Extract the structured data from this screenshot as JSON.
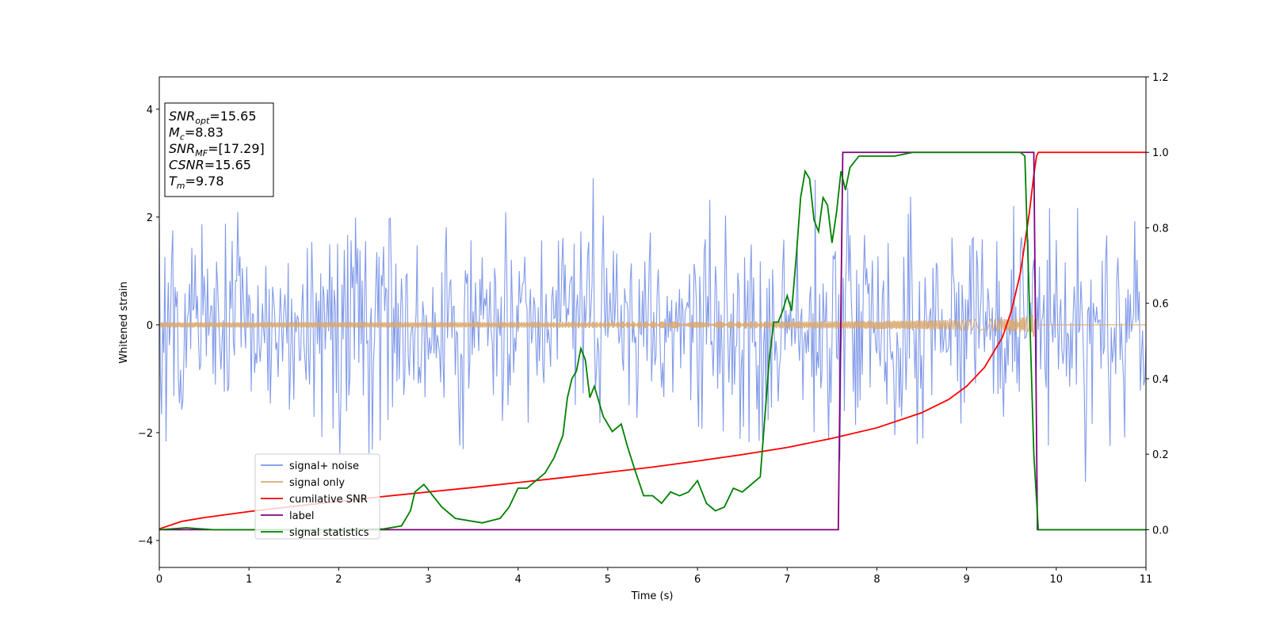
{
  "chart_data": {
    "type": "line",
    "title": "",
    "xlabel": "Time (s)",
    "ylabel": "Whitened strain",
    "y2label": "",
    "xlim": [
      0,
      11
    ],
    "ylim": [
      -4.5,
      4.6
    ],
    "y2lim": [
      -0.1,
      1.2
    ],
    "xticks": [
      0,
      1,
      2,
      3,
      4,
      5,
      6,
      7,
      8,
      9,
      10,
      11
    ],
    "yticks": [
      -4,
      -2,
      0,
      2,
      4
    ],
    "y2ticks": [
      0.0,
      0.2,
      0.4,
      0.6,
      0.8,
      1.0,
      1.2
    ],
    "grid": false,
    "legend_position": "lower-left",
    "info_box": {
      "lines": [
        {
          "main": "SNR",
          "sub": "opt",
          "rest": "=15.65"
        },
        {
          "main": "M",
          "sub": "c",
          "rest": "=8.83"
        },
        {
          "main": "SNR",
          "sub": "MF",
          "rest": "=[17.29]"
        },
        {
          "main": "CSNR",
          "sub": "",
          "rest": "=15.65"
        },
        {
          "main": "T",
          "sub": "m",
          "rest": "=9.78"
        }
      ]
    },
    "series": [
      {
        "name": "signal+ noise",
        "axis": "left",
        "color": "#7b96e8",
        "kind": "noise",
        "sigma": 0.95,
        "sample_step": 0.0125,
        "t_end": 11
      },
      {
        "name": "signal only",
        "axis": "left",
        "color": "#d9a86e",
        "kind": "chirp",
        "t_start": 0,
        "t_merge": 9.78,
        "amp_start": 0.05,
        "amp_merge": 1.05
      },
      {
        "name": "cumilative SNR",
        "axis": "right",
        "color": "#ff0000",
        "x": [
          0,
          0.25,
          0.5,
          1,
          1.5,
          2,
          2.5,
          3,
          3.5,
          4,
          4.5,
          5,
          5.5,
          6,
          6.5,
          7,
          7.5,
          8,
          8.5,
          8.8,
          9,
          9.2,
          9.4,
          9.5,
          9.6,
          9.65,
          9.7,
          9.75,
          9.78,
          9.8,
          10,
          10.5,
          11
        ],
        "y": [
          0.002,
          0.022,
          0.032,
          0.048,
          0.062,
          0.075,
          0.088,
          0.1,
          0.112,
          0.125,
          0.138,
          0.152,
          0.166,
          0.182,
          0.199,
          0.218,
          0.242,
          0.27,
          0.31,
          0.345,
          0.38,
          0.43,
          0.51,
          0.58,
          0.68,
          0.76,
          0.84,
          0.94,
          0.99,
          1.0,
          1.0,
          1.0,
          1.0
        ]
      },
      {
        "name": "label",
        "axis": "right",
        "color": "#800080",
        "x": [
          0,
          7.57,
          7.62,
          9.75,
          9.79,
          11
        ],
        "y": [
          0,
          0,
          1,
          1,
          0,
          0
        ]
      },
      {
        "name": "signal statistics",
        "axis": "right",
        "color": "#008000",
        "x": [
          0,
          0.3,
          0.6,
          1,
          1.5,
          2,
          2.5,
          2.7,
          2.8,
          2.85,
          2.95,
          3.05,
          3.15,
          3.3,
          3.6,
          3.8,
          3.9,
          4,
          4.1,
          4.2,
          4.3,
          4.4,
          4.5,
          4.55,
          4.6,
          4.65,
          4.7,
          4.75,
          4.8,
          4.85,
          4.95,
          5.05,
          5.15,
          5.22,
          5.3,
          5.4,
          5.5,
          5.6,
          5.7,
          5.8,
          5.9,
          6.0,
          6.1,
          6.2,
          6.3,
          6.4,
          6.5,
          6.6,
          6.7,
          6.8,
          6.85,
          6.9,
          6.95,
          7.0,
          7.05,
          7.1,
          7.15,
          7.2,
          7.25,
          7.3,
          7.35,
          7.4,
          7.45,
          7.5,
          7.55,
          7.6,
          7.65,
          7.7,
          7.8,
          7.9,
          8.0,
          8.2,
          8.4,
          8.6,
          8.8,
          9.0,
          9.2,
          9.4,
          9.6,
          9.65,
          9.7,
          9.75,
          9.8,
          10,
          10.5,
          11
        ],
        "y": [
          0.0,
          0.005,
          0.0,
          0.0,
          0.0,
          0.0,
          0.002,
          0.01,
          0.05,
          0.1,
          0.12,
          0.09,
          0.06,
          0.03,
          0.018,
          0.03,
          0.06,
          0.11,
          0.11,
          0.13,
          0.15,
          0.19,
          0.25,
          0.35,
          0.4,
          0.42,
          0.48,
          0.45,
          0.35,
          0.38,
          0.3,
          0.26,
          0.28,
          0.22,
          0.16,
          0.09,
          0.09,
          0.07,
          0.1,
          0.09,
          0.1,
          0.13,
          0.07,
          0.05,
          0.06,
          0.11,
          0.1,
          0.12,
          0.14,
          0.45,
          0.55,
          0.55,
          0.58,
          0.62,
          0.58,
          0.72,
          0.88,
          0.95,
          0.93,
          0.82,
          0.79,
          0.88,
          0.86,
          0.76,
          0.84,
          0.95,
          0.9,
          0.96,
          0.99,
          0.99,
          0.99,
          0.99,
          1.0,
          1.0,
          1.0,
          1.0,
          1.0,
          1.0,
          1.0,
          0.99,
          0.6,
          0.2,
          0.0,
          0.0,
          0.0,
          0.0
        ]
      }
    ]
  }
}
